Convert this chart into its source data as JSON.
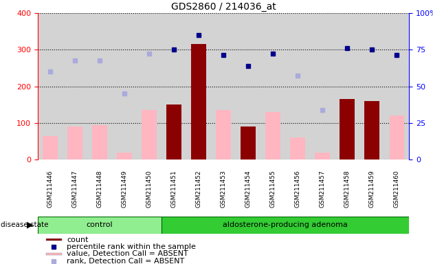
{
  "title": "GDS2860 / 214036_at",
  "samples": [
    "GSM211446",
    "GSM211447",
    "GSM211448",
    "GSM211449",
    "GSM211450",
    "GSM211451",
    "GSM211452",
    "GSM211453",
    "GSM211454",
    "GSM211455",
    "GSM211456",
    "GSM211457",
    "GSM211458",
    "GSM211459",
    "GSM211460"
  ],
  "count_values": [
    null,
    null,
    null,
    null,
    null,
    150,
    315,
    null,
    90,
    null,
    null,
    null,
    165,
    160,
    null
  ],
  "value_absent": [
    65,
    90,
    95,
    20,
    135,
    null,
    null,
    135,
    null,
    130,
    60,
    20,
    null,
    null,
    120
  ],
  "rank_absent": [
    240,
    270,
    270,
    180,
    290,
    null,
    null,
    null,
    null,
    null,
    230,
    135,
    null,
    null,
    285
  ],
  "percentile_rank": [
    null,
    null,
    null,
    null,
    null,
    300,
    340,
    285,
    255,
    290,
    null,
    null,
    305,
    300,
    285
  ],
  "n_control": 5,
  "n_adenoma": 10,
  "ylim_left": [
    0,
    400
  ],
  "yticks_left": [
    0,
    100,
    200,
    300,
    400
  ],
  "yticks_right": [
    0,
    25,
    50,
    75,
    100
  ],
  "bar_color_count": "#8B0000",
  "bar_color_absent": "#FFB6C1",
  "dot_color_percentile": "#00008B",
  "dot_color_rank_absent": "#AAAADD",
  "bg_color_samples": "#D3D3D3",
  "bg_color_control": "#90EE90",
  "bg_color_adenoma": "#33CC33",
  "legend_items": [
    {
      "label": "count",
      "color": "#8B0000",
      "type": "bar"
    },
    {
      "label": "percentile rank within the sample",
      "color": "#00008B",
      "type": "dot"
    },
    {
      "label": "value, Detection Call = ABSENT",
      "color": "#FFB6C1",
      "type": "bar"
    },
    {
      "label": "rank, Detection Call = ABSENT",
      "color": "#AAAADD",
      "type": "dot"
    }
  ]
}
